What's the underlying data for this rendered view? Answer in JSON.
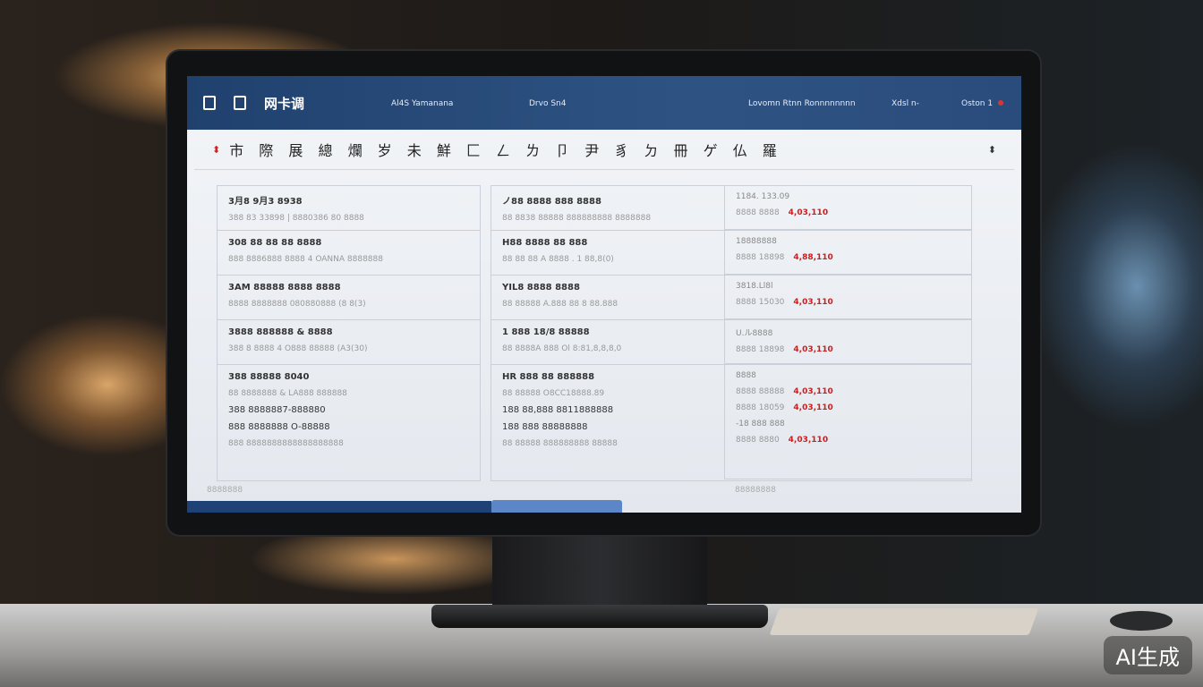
{
  "topbar": {
    "logo": "网卡调",
    "nav": [
      "Al4S Yamanana",
      "Drvo Sn4",
      "Lovomn Rtnn Ronnnnnnnn",
      "Xdsl n-",
      "Oston 1"
    ]
  },
  "title": "市 際 展 總 爛 岁 未 鮮 匚 ㄥ ㄌ 卩 尹 豸 ㄉ 冊 ゲ 仏 羅",
  "left": [
    {
      "title": "3月8 9月3 8938",
      "sub": "388 83 33898 | 8880386 80 8888"
    },
    {
      "title": "308 88 88 88 8888",
      "sub": "888 8886888 8888 4 OANNA 8888888"
    },
    {
      "title": "3AM 88888 8888 8888",
      "sub": "8888 8888888 080880888 (8 8(3)"
    },
    {
      "title": "3888 888888 & 8888",
      "sub": "388 8 8888 4 O888 88888 (A3(30)"
    },
    {
      "title": "388 88888 8040",
      "sub": "88 8888888 & LA888 888888"
    },
    {
      "title": "388 8888887-888880",
      "sub": ""
    },
    {
      "title": "888 8888888 O-88888",
      "sub": "888 8888888888888888888"
    }
  ],
  "mid": [
    {
      "title": "ノ88 8888 888 8888",
      "sub": "88 8838 88888 888888888 8888888"
    },
    {
      "title": "H88 8888 88 888",
      "sub": "88 88 88 A 8888 . 1 88,8(0)"
    },
    {
      "title": "YIL8 8888 8888",
      "sub": "88 88888 A.888 88 8 88.888"
    },
    {
      "title": "1 888 18/8 88888",
      "sub": "88 8888A 888 Ol 8:81,8,8,8,0"
    },
    {
      "title": "HR 888 88 888888",
      "sub": "88 88888 O8CC18888.89"
    },
    {
      "title": "188 88,888 8811888888",
      "sub": ""
    },
    {
      "title": "188 888 88888888",
      "sub": "88 88888 888888888 88888"
    }
  ],
  "right": [
    {
      "label": "1184. 133.09",
      "num": "8888 8888",
      "value": "4,03,110"
    },
    {
      "label": "18888888",
      "num": "8888 18898",
      "value": "4,88,110"
    },
    {
      "label": "3818.Ll8l",
      "num": "8888 15030",
      "value": "4,03,110"
    },
    {
      "label": "U.ル8888",
      "num": "8888 18898",
      "value": "4,03,110"
    },
    {
      "label": "8888",
      "num": "8888 88888",
      "value": "4,03,110"
    },
    {
      "label": "",
      "num": "8888 18059",
      "value": "4,03,110"
    },
    {
      "label": "-18 888 888",
      "num": "8888 8880",
      "value": "4,03,110"
    }
  ],
  "footer": {
    "left": "8888888",
    "right": "88888888"
  },
  "watermark": "AI生成",
  "colors": {
    "header": "#2a4c7c",
    "value": "#c82020"
  }
}
